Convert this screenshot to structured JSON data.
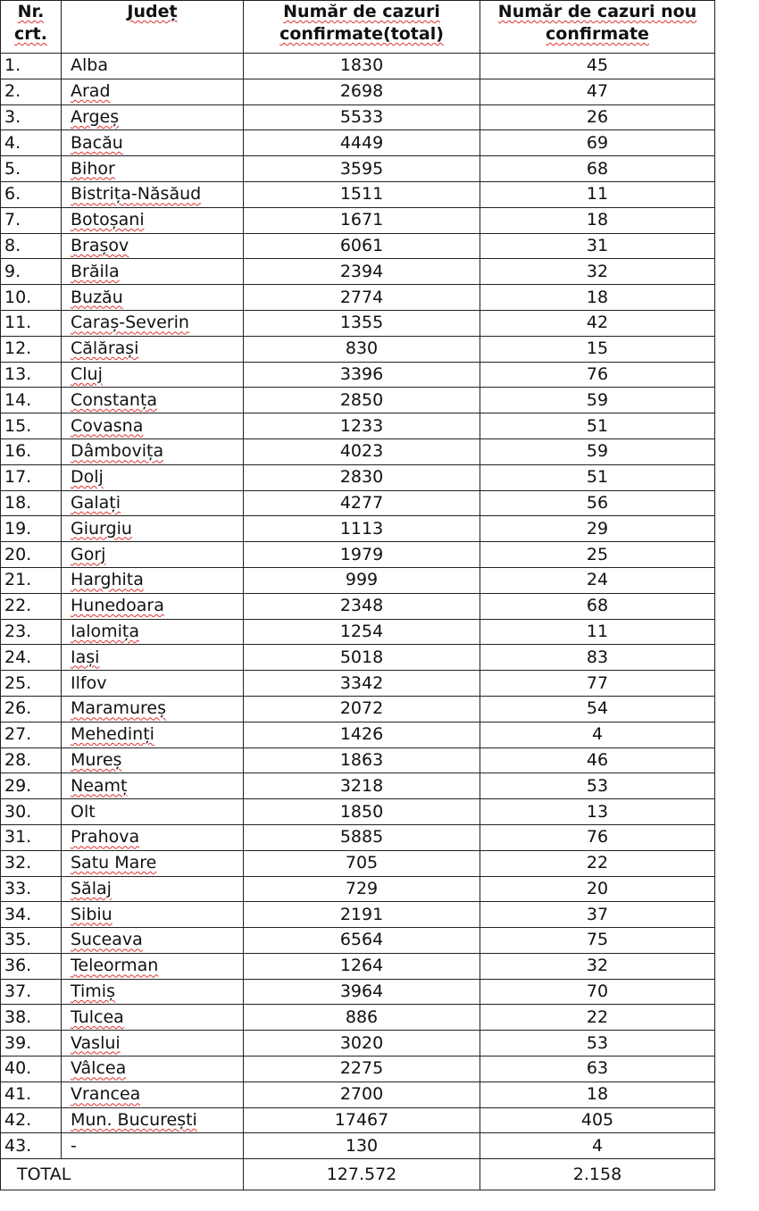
{
  "headers": {
    "nr": "Nr. crt.",
    "judet": "Județ",
    "total": "Număr de cazuri confirmate(total)",
    "new": "Număr de cazuri nou confirmate"
  },
  "rows": [
    [
      "1.",
      "Alba",
      "1830",
      "45"
    ],
    [
      "2.",
      "Arad",
      "2698",
      "47"
    ],
    [
      "3.",
      "Argeș",
      "5533",
      "26"
    ],
    [
      "4.",
      "Bacău",
      "4449",
      "69"
    ],
    [
      "5.",
      "Bihor",
      "3595",
      "68"
    ],
    [
      "6.",
      "Bistrița-Năsăud",
      "1511",
      "11"
    ],
    [
      "7.",
      "Botoșani",
      "1671",
      "18"
    ],
    [
      "8.",
      "Brașov",
      "6061",
      "31"
    ],
    [
      "9.",
      "Brăila",
      "2394",
      "32"
    ],
    [
      "10.",
      "Buzău",
      "2774",
      "18"
    ],
    [
      "11.",
      "Caraș-Severin",
      "1355",
      "42"
    ],
    [
      "12.",
      "Călărași",
      "830",
      "15"
    ],
    [
      "13.",
      "Cluj",
      "3396",
      "76"
    ],
    [
      "14.",
      "Constanța",
      "2850",
      "59"
    ],
    [
      "15.",
      "Covasna",
      "1233",
      "51"
    ],
    [
      "16.",
      "Dâmbovița",
      "4023",
      "59"
    ],
    [
      "17.",
      "Dolj",
      "2830",
      "51"
    ],
    [
      "18.",
      "Galați",
      "4277",
      "56"
    ],
    [
      "19.",
      "Giurgiu",
      "1113",
      "29"
    ],
    [
      "20.",
      "Gorj",
      "1979",
      "25"
    ],
    [
      "21.",
      "Harghita",
      "999",
      "24"
    ],
    [
      "22.",
      "Hunedoara",
      "2348",
      "68"
    ],
    [
      "23.",
      "Ialomița",
      "1254",
      "11"
    ],
    [
      "24.",
      "Iași",
      "5018",
      "83"
    ],
    [
      "25.",
      "Ilfov",
      "3342",
      "77"
    ],
    [
      "26.",
      "Maramureș",
      "2072",
      "54"
    ],
    [
      "27.",
      "Mehedinți",
      "1426",
      "4"
    ],
    [
      "28.",
      "Mureș",
      "1863",
      "46"
    ],
    [
      "29.",
      "Neamț",
      "3218",
      "53"
    ],
    [
      "30.",
      "Olt",
      "1850",
      "13"
    ],
    [
      "31.",
      "Prahova",
      "5885",
      "76"
    ],
    [
      "32.",
      "Satu Mare",
      "705",
      "22"
    ],
    [
      "33.",
      "Sălaj",
      "729",
      "20"
    ],
    [
      "34.",
      "Sibiu",
      "2191",
      "37"
    ],
    [
      "35.",
      "Suceava",
      "6564",
      "75"
    ],
    [
      "36.",
      "Teleorman",
      "1264",
      "32"
    ],
    [
      "37.",
      "Timiș",
      "3964",
      "70"
    ],
    [
      "38.",
      "Tulcea",
      "886",
      "22"
    ],
    [
      "39.",
      "Vaslui",
      "3020",
      "53"
    ],
    [
      "40.",
      "Vâlcea",
      "2275",
      "63"
    ],
    [
      "41.",
      "Vrancea",
      "2700",
      "18"
    ],
    [
      "42.",
      "Mun. București",
      "17467",
      "405"
    ],
    [
      "43.",
      "-",
      "130",
      "4"
    ]
  ],
  "total": {
    "label": "TOTAL",
    "total": "127.572",
    "new": "2.158"
  }
}
